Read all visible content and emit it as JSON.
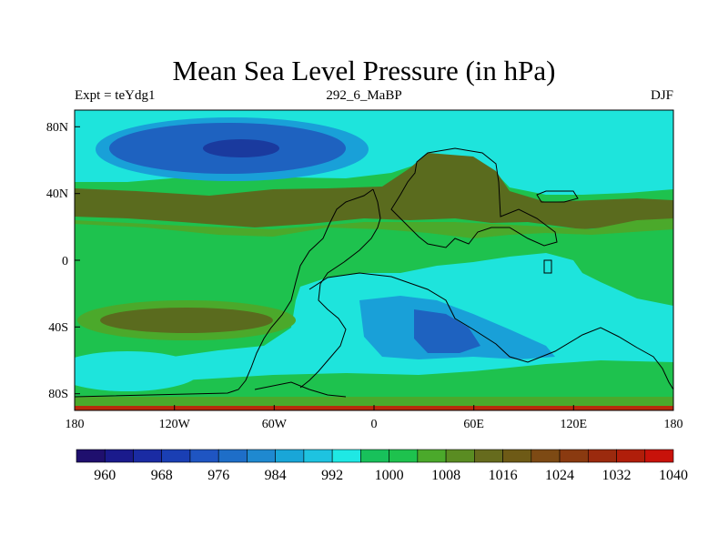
{
  "title": "Mean Sea Level Pressure (in hPa)",
  "left_label": "Expt = teYdg1",
  "center_label": "292_6_MaBP",
  "right_label": "DJF",
  "x_ticks": [
    "180",
    "120W",
    "60W",
    "0",
    "60E",
    "120E",
    "180"
  ],
  "y_ticks": [
    "80N",
    "40N",
    "0",
    "40S",
    "80S"
  ],
  "colorbar": {
    "labels": [
      "960",
      "968",
      "976",
      "984",
      "992",
      "1000",
      "1008",
      "1016",
      "1024",
      "1032",
      "1040"
    ],
    "colors": [
      "#1f0f6e",
      "#1a1a8c",
      "#1a2ba3",
      "#1a3fb4",
      "#1f55c2",
      "#1e6ec8",
      "#1f89d0",
      "#19a6d8",
      "#1ec3e0",
      "#1fe8e4",
      "#18c15b",
      "#1ec24e",
      "#4ba92b",
      "#5a8c22",
      "#666b1d",
      "#6e5a16",
      "#7d4a14",
      "#8a3a10",
      "#9b2a0e",
      "#b01e0a",
      "#c8120a"
    ]
  },
  "colors": {
    "background_field": "#1ec24e",
    "high_land": "#5a6b1e",
    "ridge": "#4ba92b",
    "low_light": "#1ee4dc",
    "low_mid": "#19a0d8",
    "low_deep": "#1e62c0",
    "low_core": "#1a3a9e",
    "red_edge": "#b82a0c"
  }
}
